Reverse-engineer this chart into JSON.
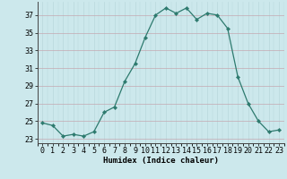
{
  "x": [
    0,
    1,
    2,
    3,
    4,
    5,
    6,
    7,
    8,
    9,
    10,
    11,
    12,
    13,
    14,
    15,
    16,
    17,
    18,
    19,
    20,
    21,
    22,
    23
  ],
  "y": [
    24.8,
    24.5,
    23.3,
    23.5,
    23.3,
    23.8,
    26.0,
    26.6,
    29.5,
    31.5,
    34.5,
    37.0,
    37.8,
    37.2,
    37.8,
    36.5,
    37.2,
    37.0,
    35.5,
    30.0,
    27.0,
    25.0,
    23.8,
    24.0
  ],
  "line_color": "#2d7a6e",
  "marker_color": "#2d7a6e",
  "bg_color": "#cce8ec",
  "grid_color_minor": "#b8d8dc",
  "grid_color_major": "#c4a8b0",
  "xlabel": "Humidex (Indice chaleur)",
  "xlim": [
    -0.5,
    23.5
  ],
  "ylim": [
    22.5,
    38.5
  ],
  "yticks": [
    23,
    25,
    27,
    29,
    31,
    33,
    35,
    37
  ],
  "xticks": [
    0,
    1,
    2,
    3,
    4,
    5,
    6,
    7,
    8,
    9,
    10,
    11,
    12,
    13,
    14,
    15,
    16,
    17,
    18,
    19,
    20,
    21,
    22,
    23
  ],
  "xlabel_fontsize": 6.5,
  "tick_fontsize": 6.0
}
